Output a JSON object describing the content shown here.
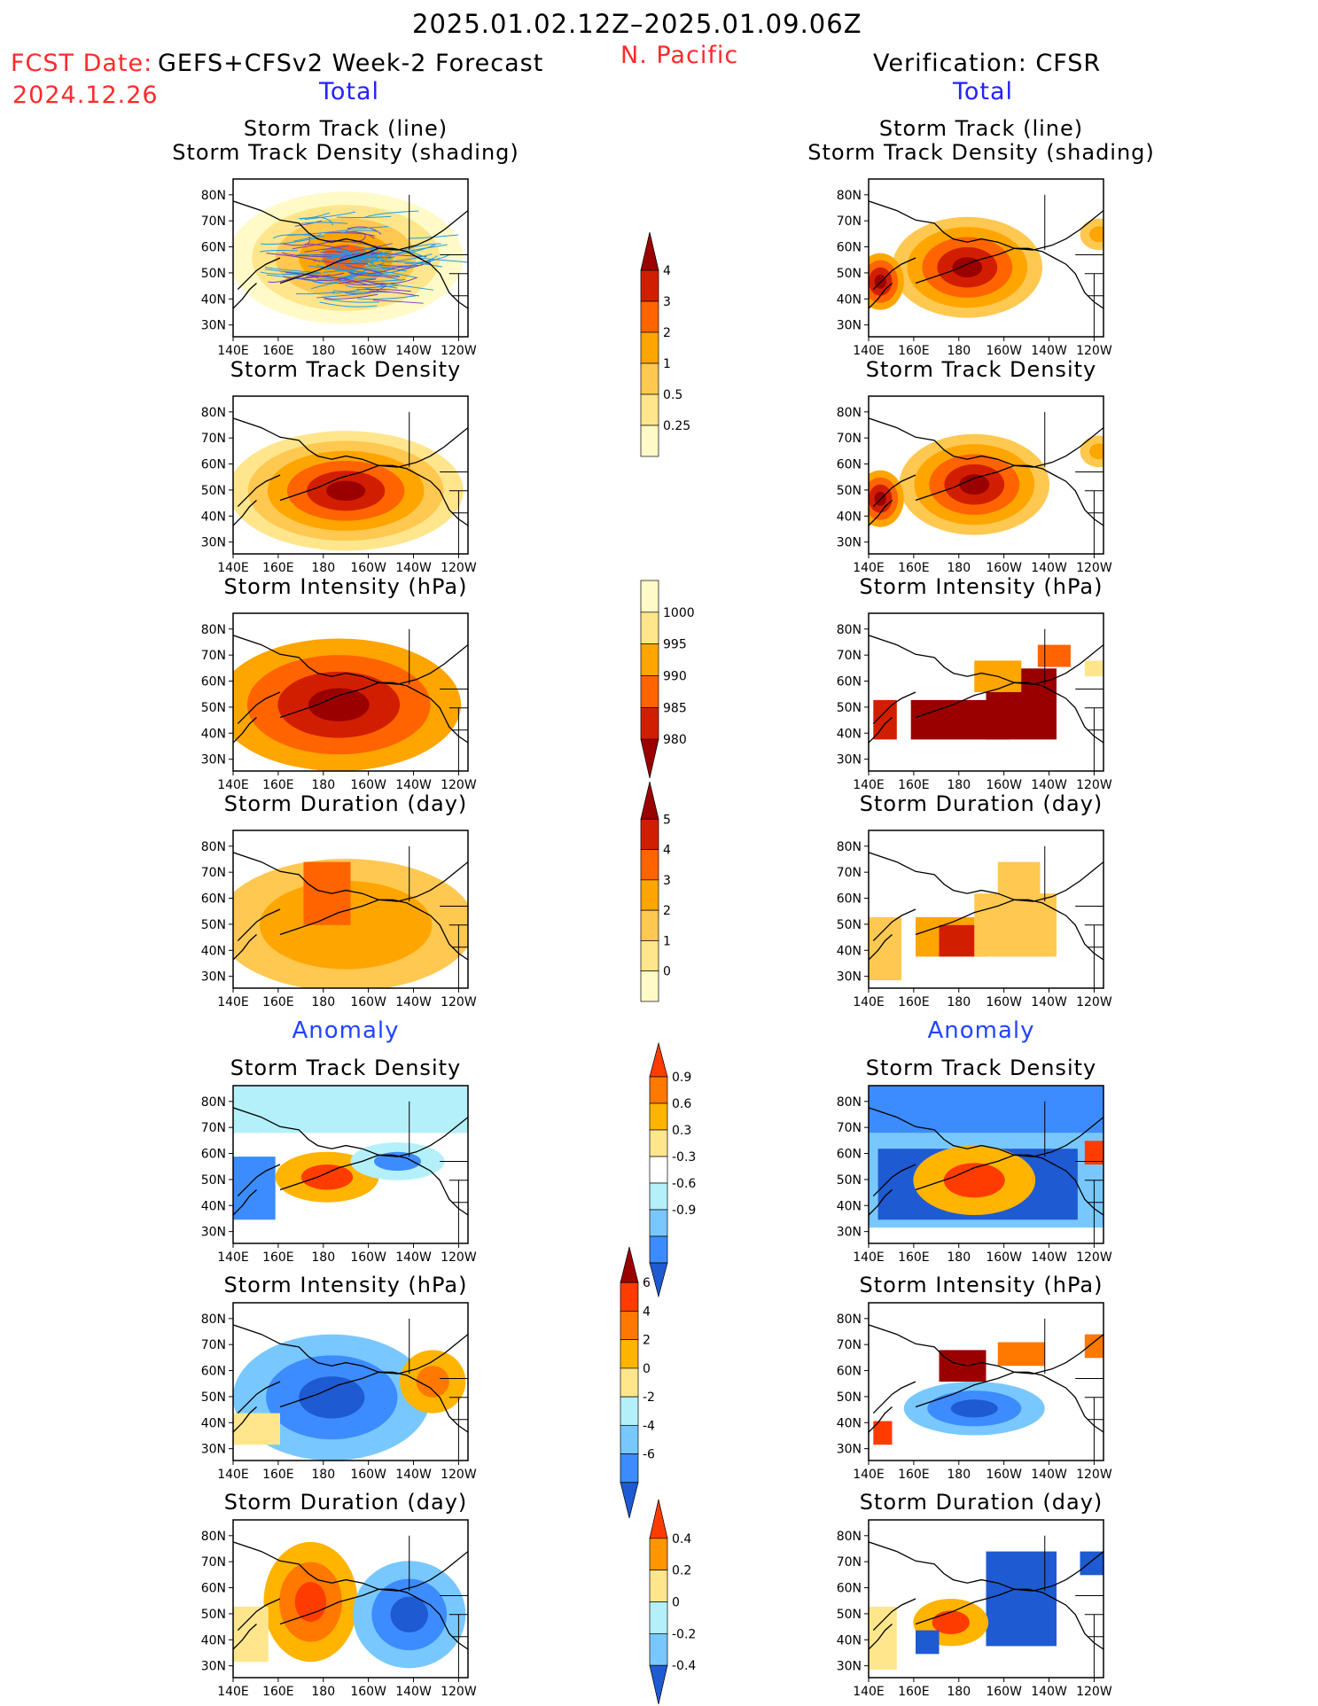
{
  "header": {
    "period": "2025.01.02.12Z–2025.01.09.06Z",
    "region": "N. Pacific",
    "fcst_label": "FCST Date:",
    "fcst_model": "GEFS+CFSv2 Week-2 Forecast",
    "fcst_date": "2024.12.26",
    "verification": "Verification: CFSR",
    "total_label": "Total",
    "anomaly_label": "Anomaly"
  },
  "panel_titles": {
    "track_line": "Storm Track (line)",
    "track_shading": "Storm Track Density (shading)",
    "density": "Storm Track Density",
    "intensity": "Storm Intensity (hPa)",
    "duration": "Storm Duration (day)"
  },
  "axes": {
    "lat_labels": [
      "80N",
      "70N",
      "60N",
      "50N",
      "40N",
      "30N"
    ],
    "lon_labels": [
      "140E",
      "160E",
      "180",
      "160W",
      "140W",
      "120W"
    ]
  },
  "colorbars": {
    "density_total": {
      "labels": [
        "4",
        "3",
        "2",
        "1",
        "0.5",
        "0.25"
      ],
      "colors": [
        "#9b0000",
        "#d21e00",
        "#ff6400",
        "#ffa500",
        "#ffc850",
        "#ffe68c",
        "#fffac8"
      ]
    },
    "intensity_total": {
      "labels": [
        "1000",
        "995",
        "990",
        "985",
        "980"
      ],
      "colors": [
        "#fffac8",
        "#ffe68c",
        "#ffa500",
        "#ff6400",
        "#d21e00",
        "#9b0000"
      ]
    },
    "duration_total": {
      "labels": [
        "5",
        "4",
        "3",
        "2",
        "1",
        "0"
      ],
      "colors": [
        "#9b0000",
        "#d21e00",
        "#ff6400",
        "#ffa500",
        "#ffc850",
        "#ffe68c",
        "#fffac8"
      ]
    },
    "density_anom": {
      "labels": [
        "0.9",
        "0.6",
        "0.3",
        "-0.3",
        "-0.6",
        "-0.9"
      ],
      "colors": [
        "#ff3c00",
        "#ff7800",
        "#ffb400",
        "#ffe68c",
        "#ffffff",
        "#b4f0fa",
        "#78c8ff",
        "#3c8cff",
        "#1e5ad2"
      ]
    },
    "intensity_anom": {
      "labels": [
        "6",
        "4",
        "2",
        "0",
        "-2",
        "-4",
        "-6"
      ],
      "colors": [
        "#9b0000",
        "#ff3c00",
        "#ff7800",
        "#ffb400",
        "#ffe68c",
        "#b4f0fa",
        "#78c8ff",
        "#3c8cff",
        "#1e5ad2"
      ]
    },
    "duration_anom": {
      "labels": [
        "0.4",
        "0.2",
        "0",
        "-0.2",
        "-0.4"
      ],
      "colors": [
        "#ff3c00",
        "#ff9600",
        "#ffe68c",
        "#b4f0fa",
        "#78c8ff",
        "#1e5ad2"
      ]
    }
  }
}
